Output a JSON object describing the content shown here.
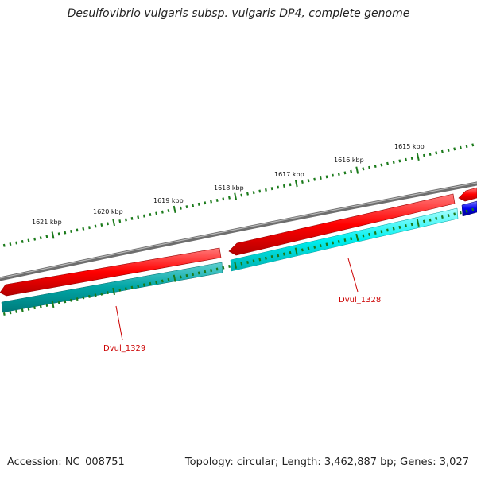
{
  "title": "Desulfovibrio vulgaris subsp. vulgaris DP4, complete genome",
  "footer": {
    "accession": "Accession: NC_008751",
    "summary": "Topology: circular; Length: 3,462,887 bp; Genes: 3,027"
  },
  "scale": {
    "labels": [
      "1621 kbp",
      "1620 kbp",
      "1619 kbp",
      "1618 kbp",
      "1617 kbp",
      "1616 kbp",
      "1615 kbp"
    ]
  },
  "genes": {
    "labels": [
      "Dvul_1328",
      "Dvul_1329"
    ]
  },
  "colors": {
    "forward_cds": "#ff0000",
    "reverse_gene": "#00e5e5",
    "reverse_gene_dark": "#00a5a5",
    "other_gene": "#0000ee",
    "backbone": "#808080",
    "ticks": "#1a7a1a",
    "gene_label": "#cc0000"
  }
}
